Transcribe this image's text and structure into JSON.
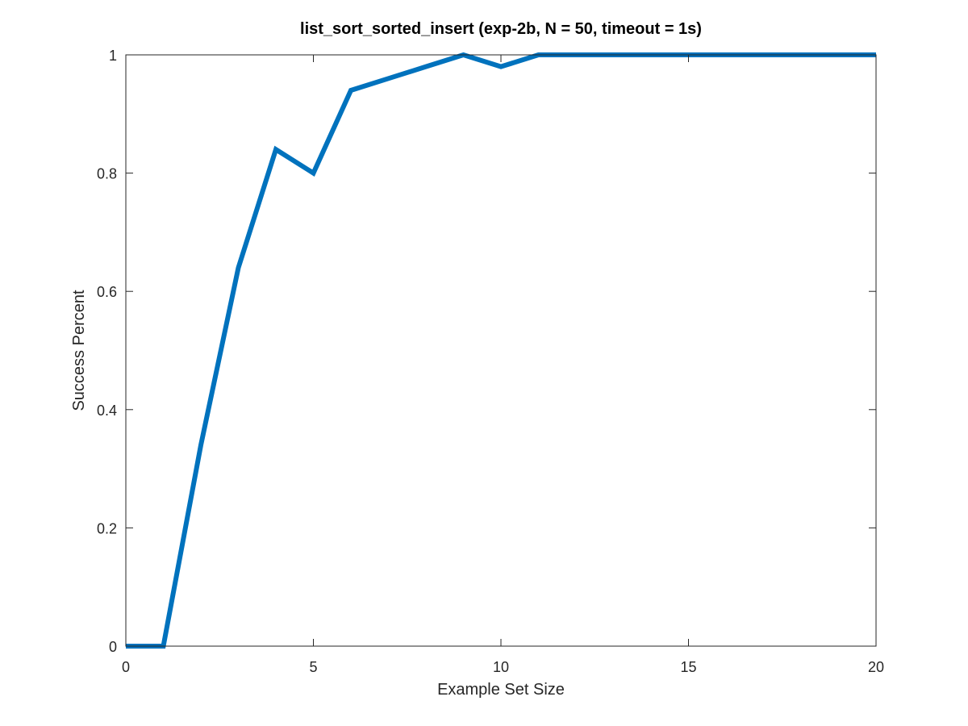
{
  "chart_data": {
    "type": "line",
    "title": "list_sort_sorted_insert (exp-2b, N = 50, timeout = 1s)",
    "xlabel": "Example Set Size",
    "ylabel": "Success Percent",
    "xlim": [
      0,
      20
    ],
    "ylim": [
      0,
      1
    ],
    "x_ticks": [
      "0",
      "5",
      "10",
      "15",
      "20"
    ],
    "y_ticks": [
      "0",
      "0.2",
      "0.4",
      "0.6",
      "0.8",
      "1"
    ],
    "grid": false,
    "box": true,
    "series": [
      {
        "color": "#0072BD",
        "x": [
          0,
          1,
          2,
          3,
          4,
          5,
          6,
          7,
          8,
          9,
          10,
          11,
          12,
          13,
          14,
          15,
          16,
          17,
          18,
          19,
          20
        ],
        "y": [
          0,
          0,
          0.34,
          0.64,
          0.84,
          0.8,
          0.94,
          0.96,
          0.98,
          1.0,
          0.98,
          1,
          1,
          1,
          1,
          1,
          1,
          1,
          1,
          1,
          1
        ]
      }
    ]
  }
}
